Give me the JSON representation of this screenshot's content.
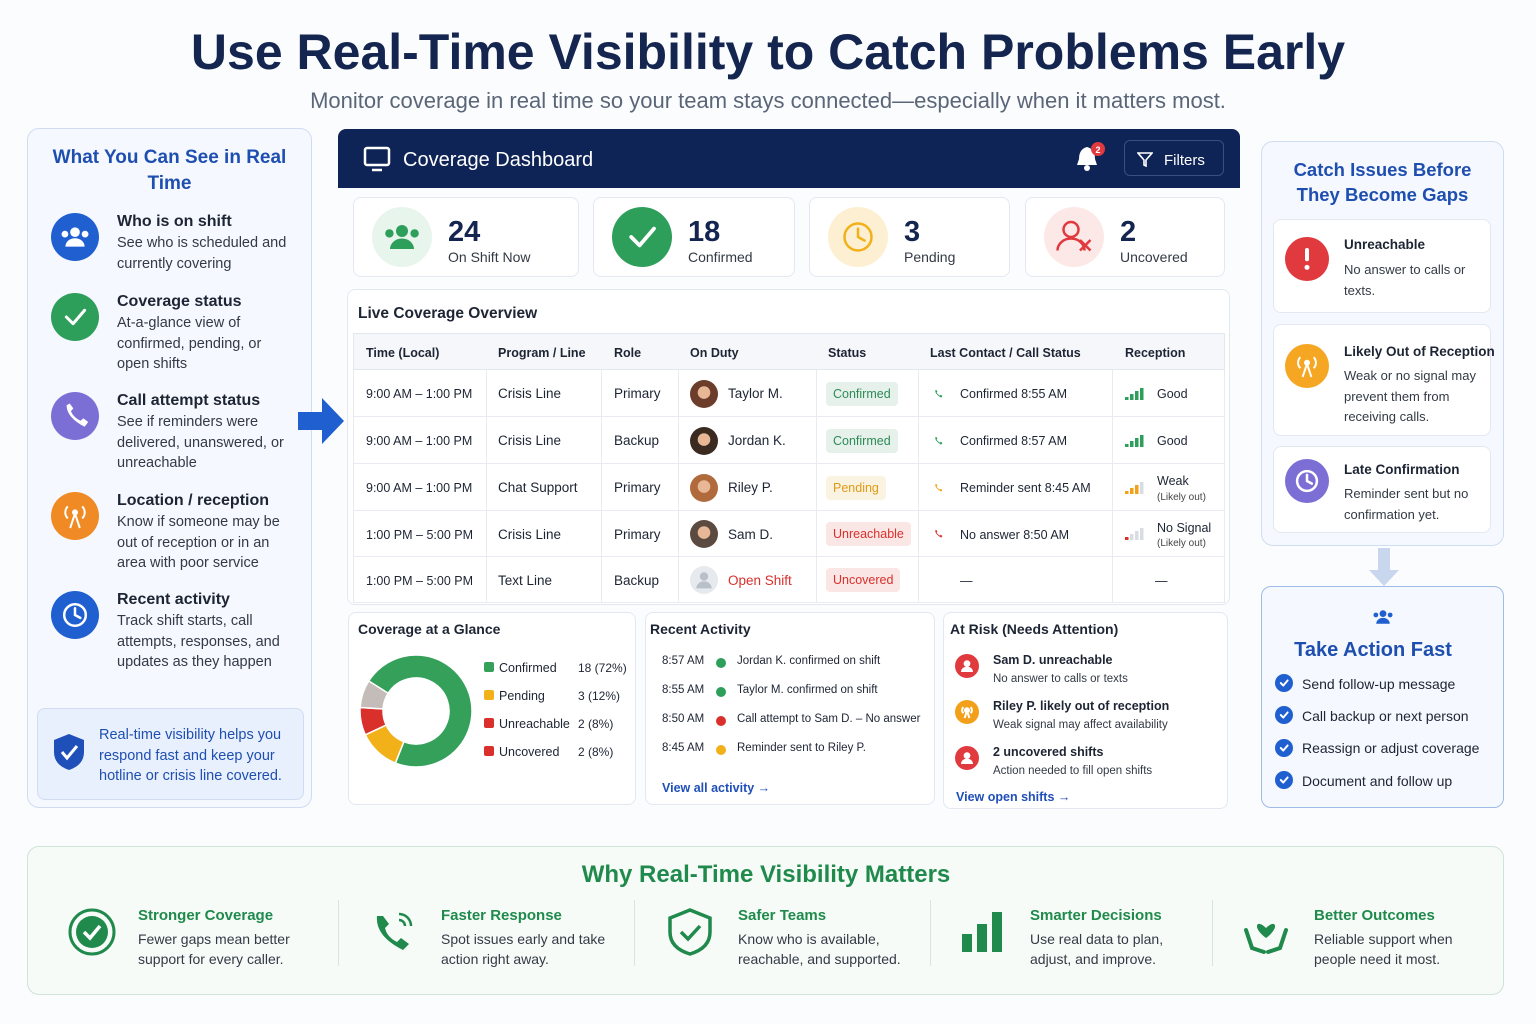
{
  "header": {
    "title": "Use Real-Time Visibility to Catch Problems Early",
    "subtitle": "Monitor coverage in real time so your team stays connected—especially when it matters most."
  },
  "left_panel": {
    "title": "What You Can See in Real Time",
    "items": [
      {
        "title": "Who is on shift",
        "text": "See who is scheduled and currently covering",
        "color": "#1f5fd0"
      },
      {
        "title": "Coverage status",
        "text": "At-a-glance view of confirmed, pending, or open shifts",
        "color": "#2e9e5b"
      },
      {
        "title": "Call attempt status",
        "text": "See if reminders were delivered, unanswered, or unreachable",
        "color": "#7b6fd6"
      },
      {
        "title": "Location / reception",
        "text": "Know if someone may be out of reception or in an area with poor service",
        "color": "#f08a24"
      },
      {
        "title": "Recent activity",
        "text": "Track shift starts, call attempts, responses, and updates as they happen",
        "color": "#1f5fd0"
      }
    ],
    "note": "Real-time visibility helps you respond fast and keep your hotline or crisis line covered."
  },
  "dashboard": {
    "title": "Coverage Dashboard",
    "notifications": 2,
    "filters": "Filters",
    "stats": [
      {
        "value": 24,
        "label": "On Shift Now",
        "color": "#2e9e5b"
      },
      {
        "value": 18,
        "label": "Confirmed",
        "color": "#2e9e5b"
      },
      {
        "value": 3,
        "label": "Pending",
        "color": "#f2b019"
      },
      {
        "value": 2,
        "label": "Uncovered",
        "color": "#e0393e"
      }
    ],
    "table": {
      "title": "Live Coverage Overview",
      "columns": [
        "Time (Local)",
        "Program / Line",
        "Role",
        "On Duty",
        "Status",
        "Last Contact / Call Status",
        "Reception"
      ],
      "rows": [
        {
          "time": "9:00 AM – 1:00 PM",
          "program": "Crisis Line",
          "role": "Primary",
          "name": "Taylor M.",
          "status": "Confirmed",
          "status_color": "#2e8b57",
          "contact": "Confirmed 8:55 AM",
          "contact_color": "#2e9e5b",
          "reception": "Good",
          "reception_color": "#2e9e5b"
        },
        {
          "time": "9:00 AM – 1:00 PM",
          "program": "Crisis Line",
          "role": "Backup",
          "name": "Jordan K.",
          "status": "Confirmed",
          "status_color": "#2e8b57",
          "contact": "Confirmed 8:57 AM",
          "contact_color": "#2e9e5b",
          "reception": "Good",
          "reception_color": "#2e9e5b"
        },
        {
          "time": "9:00 AM – 1:00 PM",
          "program": "Chat Support",
          "role": "Primary",
          "name": "Riley P.",
          "status": "Pending",
          "status_color": "#e09a14",
          "contact": "Reminder sent 8:45 AM",
          "contact_color": "#f2a019",
          "reception": "Weak",
          "reception_note": "(Likely out)",
          "reception_color": "#f2a019"
        },
        {
          "time": "1:00 PM – 5:00 PM",
          "program": "Crisis Line",
          "role": "Primary",
          "name": "Sam D.",
          "status": "Unreachable",
          "status_color": "#d9302c",
          "contact": "No answer 8:50 AM",
          "contact_color": "#d9302c",
          "reception": "No Signal",
          "reception_note": "(Likely out)",
          "reception_color": "#d9302c"
        },
        {
          "time": "1:00 PM – 5:00 PM",
          "program": "Text Line",
          "role": "Backup",
          "name": "Open Shift",
          "name_color": "#d9302c",
          "status": "Uncovered",
          "status_color": "#d9302c",
          "contact": "—",
          "reception": "—"
        }
      ]
    }
  },
  "chart_data": {
    "type": "pie",
    "title": "Coverage at a Glance",
    "categories": [
      "Confirmed",
      "Pending",
      "Unreachable",
      "Uncovered"
    ],
    "values": [
      18,
      3,
      2,
      2
    ],
    "value_labels": [
      "18 (72%)",
      "3 (12%)",
      "2 (8%)",
      "2 (8%)"
    ],
    "colors": [
      "#34a05a",
      "#f2b019",
      "#d9302c",
      "#c4bcb8"
    ]
  },
  "recent_activity": {
    "title": "Recent Activity",
    "items": [
      {
        "time": "8:57 AM",
        "text": "Jordan K. confirmed on shift",
        "color": "#2e9e5b"
      },
      {
        "time": "8:55 AM",
        "text": "Taylor M. confirmed on shift",
        "color": "#2e9e5b"
      },
      {
        "time": "8:50 AM",
        "text": "Call attempt to Sam D. – No answer",
        "color": "#d9302c"
      },
      {
        "time": "8:45 AM",
        "text": "Reminder sent to Riley P.",
        "color": "#f2b019"
      }
    ],
    "link": "View all activity →"
  },
  "at_risk": {
    "title": "At Risk (Needs Attention)",
    "items": [
      {
        "title": "Sam D. unreachable",
        "text": "No answer to calls or texts",
        "color": "#e0393e"
      },
      {
        "title": "Riley P. likely out of reception",
        "text": "Weak signal may affect availability",
        "color": "#f2a019"
      },
      {
        "title": "2 uncovered shifts",
        "text": "Action needed to fill open shifts",
        "color": "#e0393e"
      }
    ],
    "link": "View open shifts →"
  },
  "right_panel": {
    "title": "Catch Issues Before They Become Gaps",
    "items": [
      {
        "title": "Unreachable",
        "text": "No answer to calls or texts.",
        "color": "#e0393e"
      },
      {
        "title": "Likely Out of Reception",
        "text": "Weak or no signal may prevent them from receiving calls.",
        "color": "#f5a623"
      },
      {
        "title": "Late Confirmation",
        "text": "Reminder sent but no confirmation yet.",
        "color": "#7b6fd6"
      }
    ]
  },
  "action": {
    "title": "Take Action Fast",
    "items": [
      "Send follow-up message",
      "Call backup or next person",
      "Reassign or adjust coverage",
      "Document and follow up"
    ]
  },
  "bottom": {
    "title": "Why Real-Time Visibility Matters",
    "items": [
      {
        "title": "Stronger Coverage",
        "text": "Fewer gaps mean better support for every caller."
      },
      {
        "title": "Faster Response",
        "text": "Spot issues early and take action right away."
      },
      {
        "title": "Safer Teams",
        "text": "Know who is available, reachable, and supported."
      },
      {
        "title": "Smarter Decisions",
        "text": "Use real data to plan, adjust, and improve."
      },
      {
        "title": "Better Outcomes",
        "text": "Reliable support when people need it most."
      }
    ]
  }
}
